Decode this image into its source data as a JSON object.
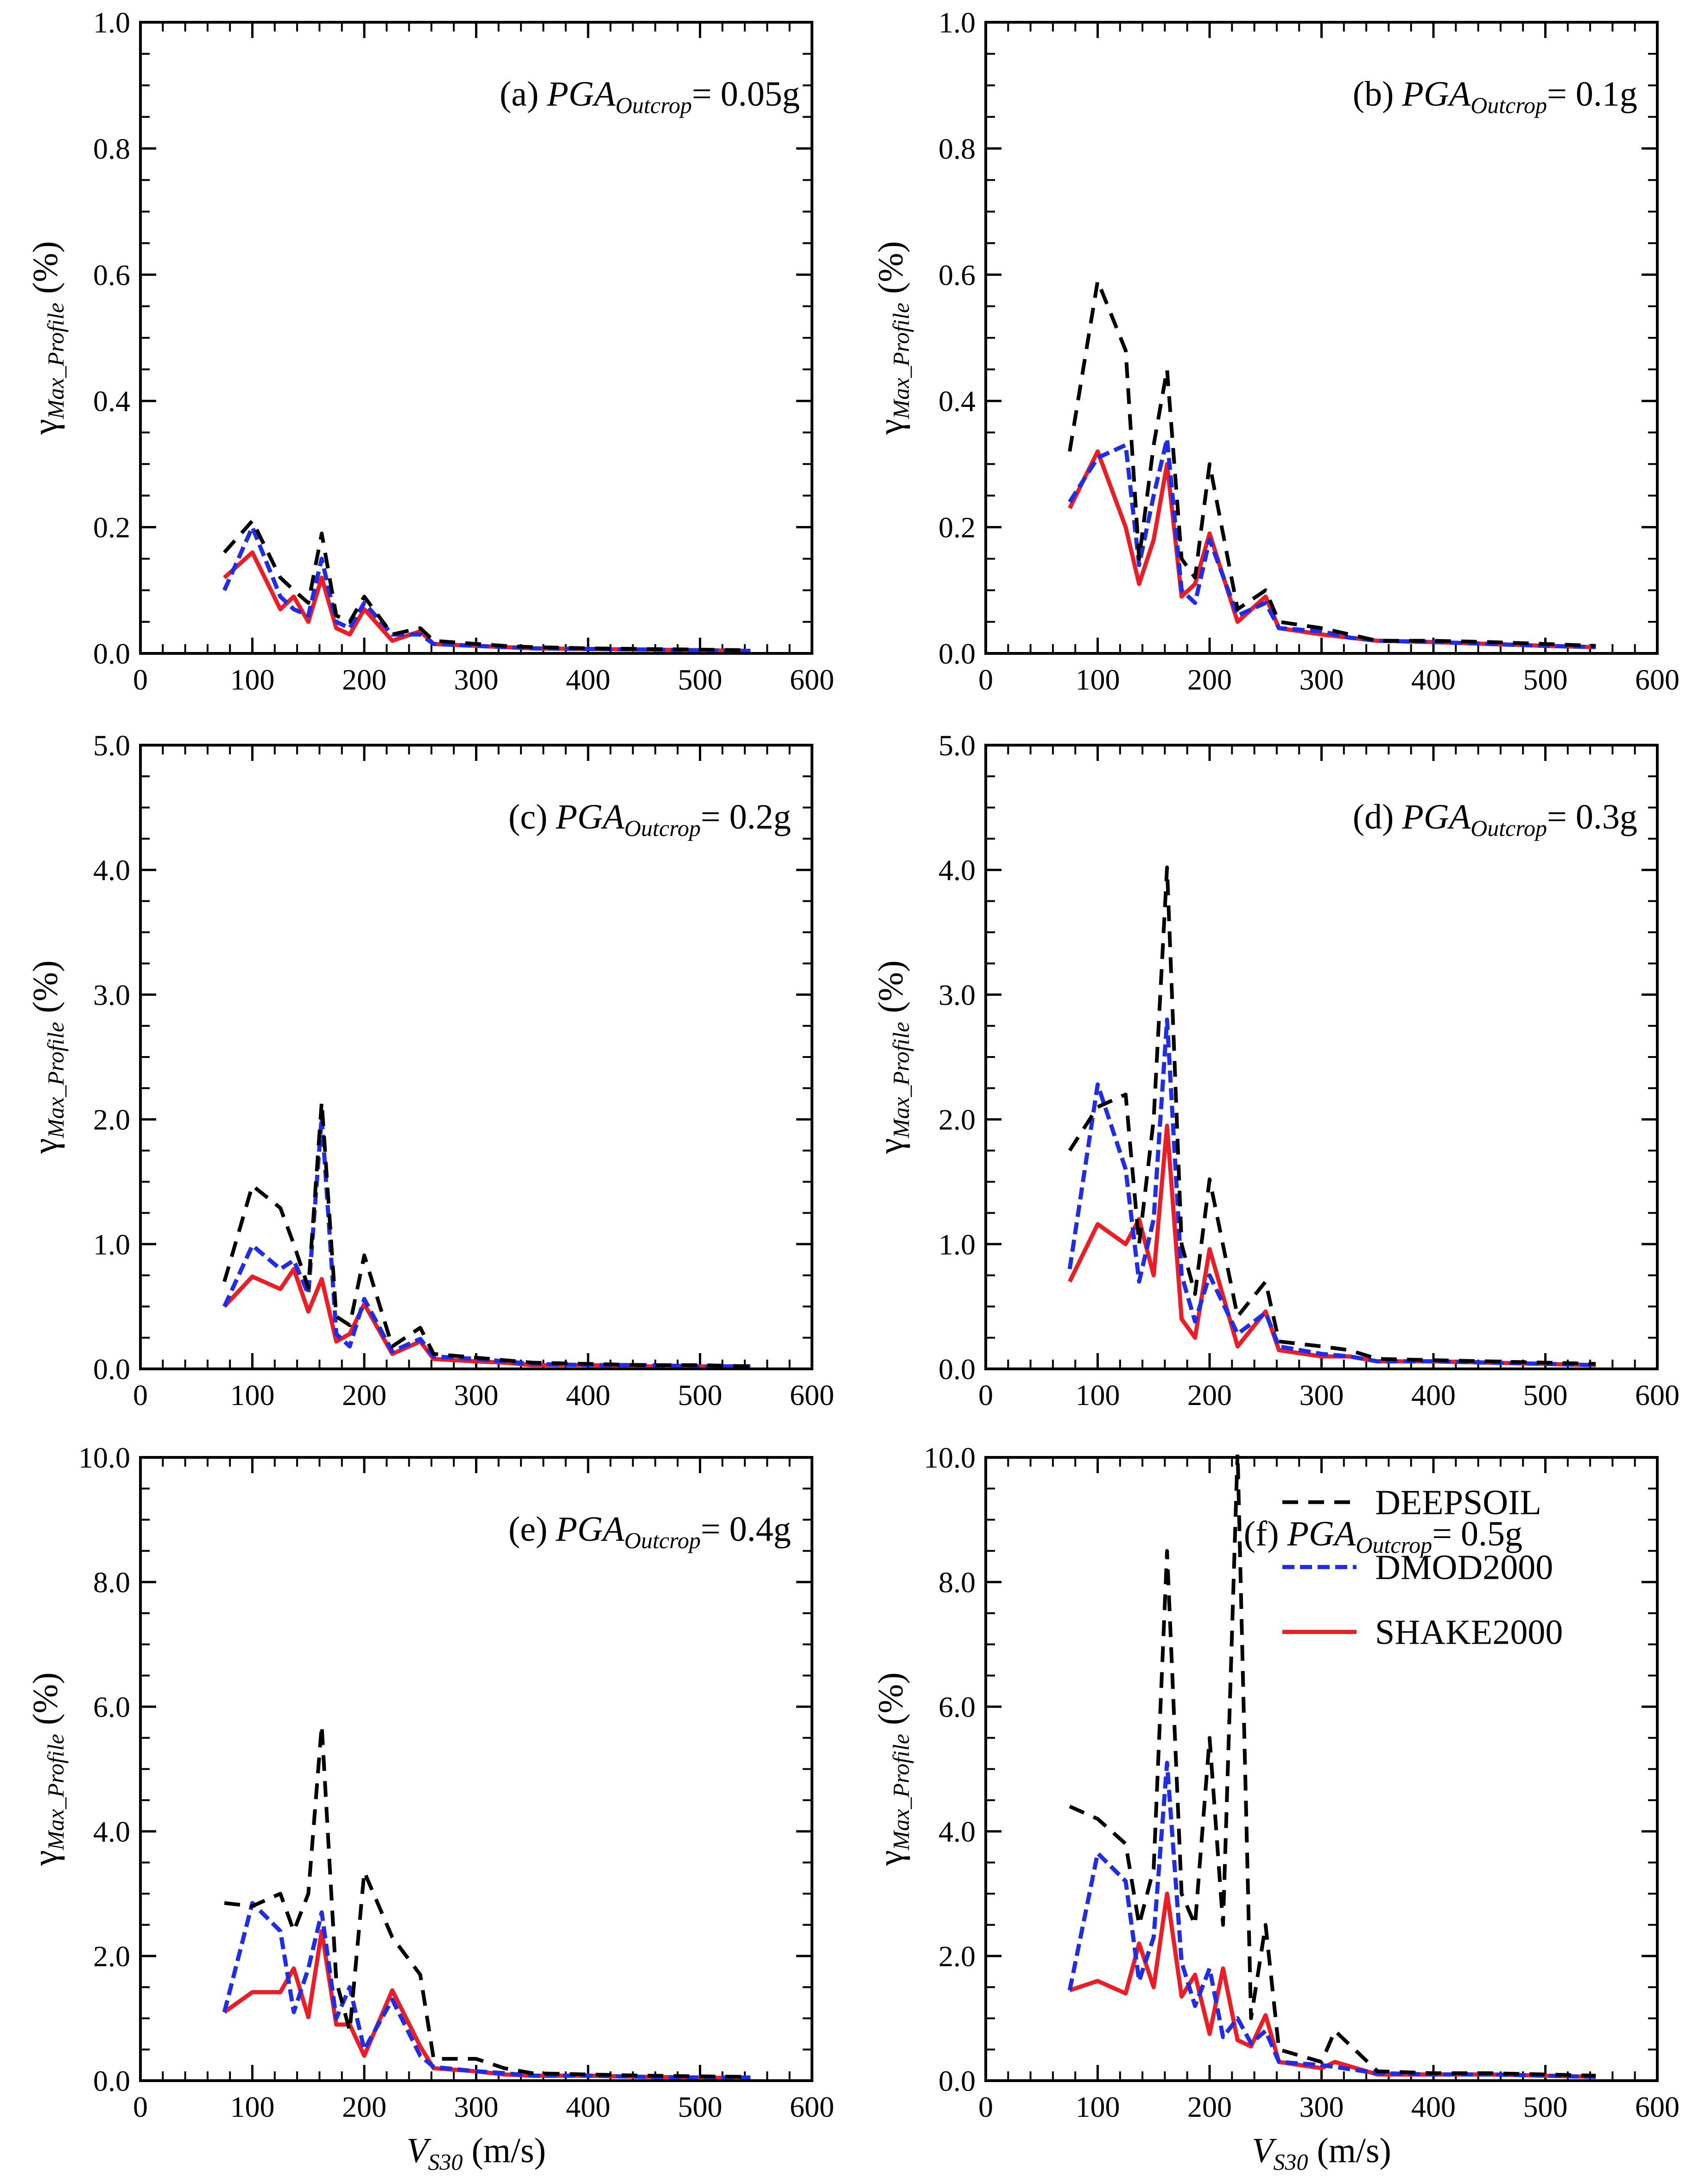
{
  "figure": {
    "x_label_main": "V",
    "x_label_sub": "S30",
    "x_label_unit": " (m/s)",
    "y_label_main": "γ",
    "y_label_sub": "Max_Profile",
    "y_label_unit": " (%)",
    "title_prefix_letters": [
      "(a)",
      "(b)",
      "(c)",
      "(d)",
      "(e)",
      "(f)"
    ],
    "title_var": "PGA",
    "title_sub": "Outcrop",
    "legend": [
      {
        "name": "SHAKE2000",
        "color": "#ee1c24"
      },
      {
        "name": "DMOD2000",
        "color": "#1f2ce8"
      },
      {
        "name": "DEEPSOIL",
        "color": "#000000"
      }
    ]
  },
  "chart_data": [
    {
      "type": "line",
      "title_letter": "(a)",
      "title_value": "= 0.05g",
      "xlim": [
        0,
        600
      ],
      "ylim": [
        0,
        1.0
      ],
      "xticks": [
        "0",
        "100",
        "200",
        "300",
        "400",
        "500",
        "600"
      ],
      "yticks": [
        "0.0",
        "0.2",
        "0.4",
        "0.6",
        "0.8",
        "1.0"
      ],
      "x": [
        75,
        100,
        125,
        137,
        150,
        162,
        175,
        187,
        200,
        225,
        250,
        262,
        300,
        325,
        350,
        400,
        450,
        500,
        545
      ],
      "series": [
        {
          "name": "SHAKE2000",
          "values": [
            0.12,
            0.16,
            0.07,
            0.09,
            0.05,
            0.12,
            0.04,
            0.03,
            0.07,
            0.02,
            0.035,
            0.015,
            0.012,
            0.01,
            0.008,
            0.007,
            0.006,
            0.005,
            0.004
          ]
        },
        {
          "name": "DMOD2000",
          "values": [
            0.1,
            0.2,
            0.09,
            0.07,
            0.06,
            0.15,
            0.05,
            0.04,
            0.08,
            0.03,
            0.03,
            0.015,
            0.012,
            0.01,
            0.008,
            0.007,
            0.006,
            0.005,
            0.004
          ]
        },
        {
          "name": "DEEPSOIL",
          "values": [
            0.16,
            0.21,
            0.12,
            0.1,
            0.08,
            0.19,
            0.06,
            0.05,
            0.09,
            0.03,
            0.04,
            0.02,
            0.015,
            0.012,
            0.01,
            0.008,
            0.007,
            0.006,
            0.005
          ]
        }
      ]
    },
    {
      "type": "line",
      "title_letter": "(b)",
      "title_value": "= 0.1g",
      "xlim": [
        0,
        600
      ],
      "ylim": [
        0,
        1.0
      ],
      "xticks": [
        "0",
        "100",
        "200",
        "300",
        "400",
        "500",
        "600"
      ],
      "yticks": [
        "0.0",
        "0.2",
        "0.4",
        "0.6",
        "0.8",
        "1.0"
      ],
      "x": [
        75,
        100,
        125,
        137,
        150,
        162,
        175,
        187,
        200,
        225,
        250,
        262,
        300,
        325,
        350,
        400,
        450,
        500,
        545
      ],
      "series": [
        {
          "name": "SHAKE2000",
          "values": [
            0.23,
            0.32,
            0.2,
            0.11,
            0.18,
            0.3,
            0.09,
            0.11,
            0.19,
            0.05,
            0.09,
            0.04,
            0.03,
            0.025,
            0.02,
            0.018,
            0.015,
            0.012,
            0.01
          ]
        },
        {
          "name": "DMOD2000",
          "values": [
            0.24,
            0.31,
            0.33,
            0.14,
            0.25,
            0.34,
            0.1,
            0.08,
            0.18,
            0.06,
            0.08,
            0.04,
            0.035,
            0.025,
            0.02,
            0.018,
            0.015,
            0.012,
            0.01
          ]
        },
        {
          "name": "DEEPSOIL",
          "values": [
            0.32,
            0.59,
            0.48,
            0.15,
            0.33,
            0.45,
            0.15,
            0.12,
            0.3,
            0.07,
            0.1,
            0.05,
            0.04,
            0.03,
            0.02,
            0.02,
            0.018,
            0.015,
            0.012
          ]
        }
      ]
    },
    {
      "type": "line",
      "title_letter": "(c)",
      "title_value": "= 0.2g",
      "xlim": [
        0,
        600
      ],
      "ylim": [
        0,
        5.0
      ],
      "xticks": [
        "0",
        "100",
        "200",
        "300",
        "400",
        "500",
        "600"
      ],
      "yticks": [
        "0.0",
        "1.0",
        "2.0",
        "3.0",
        "4.0",
        "5.0"
      ],
      "x": [
        75,
        100,
        125,
        137,
        150,
        162,
        175,
        187,
        200,
        225,
        250,
        262,
        300,
        325,
        350,
        400,
        450,
        500,
        545
      ],
      "series": [
        {
          "name": "SHAKE2000",
          "values": [
            0.5,
            0.74,
            0.64,
            0.8,
            0.46,
            0.72,
            0.22,
            0.28,
            0.52,
            0.12,
            0.22,
            0.08,
            0.06,
            0.05,
            0.03,
            0.03,
            0.02,
            0.02,
            0.02
          ]
        },
        {
          "name": "DMOD2000",
          "values": [
            0.5,
            0.99,
            0.8,
            0.87,
            0.6,
            2.02,
            0.28,
            0.18,
            0.56,
            0.14,
            0.24,
            0.1,
            0.08,
            0.06,
            0.04,
            0.03,
            0.03,
            0.02,
            0.02
          ]
        },
        {
          "name": "DEEPSOIL",
          "values": [
            0.7,
            1.47,
            1.29,
            1.0,
            0.65,
            2.14,
            0.42,
            0.35,
            0.91,
            0.18,
            0.33,
            0.12,
            0.09,
            0.07,
            0.05,
            0.04,
            0.03,
            0.03,
            0.02
          ]
        }
      ]
    },
    {
      "type": "line",
      "title_letter": "(d)",
      "title_value": "= 0.3g",
      "xlim": [
        0,
        600
      ],
      "ylim": [
        0,
        5.0
      ],
      "xticks": [
        "0",
        "100",
        "200",
        "300",
        "400",
        "500",
        "600"
      ],
      "yticks": [
        "0.0",
        "1.0",
        "2.0",
        "3.0",
        "4.0",
        "5.0"
      ],
      "x": [
        75,
        100,
        125,
        137,
        150,
        162,
        175,
        187,
        200,
        225,
        250,
        262,
        300,
        325,
        350,
        400,
        450,
        500,
        545
      ],
      "series": [
        {
          "name": "SHAKE2000",
          "values": [
            0.7,
            1.16,
            1.0,
            1.2,
            0.75,
            1.95,
            0.4,
            0.25,
            0.96,
            0.18,
            0.46,
            0.15,
            0.1,
            0.1,
            0.06,
            0.06,
            0.05,
            0.04,
            0.03
          ]
        },
        {
          "name": "DMOD2000",
          "values": [
            0.8,
            2.28,
            1.6,
            0.7,
            1.2,
            2.8,
            0.75,
            0.38,
            0.75,
            0.28,
            0.45,
            0.18,
            0.12,
            0.1,
            0.06,
            0.06,
            0.05,
            0.04,
            0.03
          ]
        },
        {
          "name": "DEEPSOIL",
          "values": [
            1.75,
            2.1,
            2.2,
            1.0,
            2.0,
            4.02,
            1.0,
            0.6,
            1.52,
            0.42,
            0.7,
            0.22,
            0.18,
            0.15,
            0.08,
            0.07,
            0.06,
            0.05,
            0.04
          ]
        }
      ]
    },
    {
      "type": "line",
      "title_letter": "(e)",
      "title_value": "= 0.4g",
      "xlim": [
        0,
        600
      ],
      "ylim": [
        0,
        10.0
      ],
      "xticks": [
        "0",
        "100",
        "200",
        "300",
        "400",
        "500",
        "600"
      ],
      "yticks": [
        "0.0",
        "2.0",
        "4.0",
        "6.0",
        "8.0",
        "10.0"
      ],
      "x": [
        75,
        100,
        125,
        137,
        150,
        162,
        175,
        187,
        200,
        225,
        250,
        262,
        300,
        325,
        350,
        400,
        450,
        500,
        545
      ],
      "series": [
        {
          "name": "SHAKE2000",
          "values": [
            1.1,
            1.42,
            1.42,
            1.8,
            1.02,
            2.4,
            0.9,
            0.9,
            0.4,
            1.45,
            0.55,
            0.2,
            0.15,
            0.1,
            0.08,
            0.08,
            0.06,
            0.05,
            0.04
          ]
        },
        {
          "name": "DMOD2000",
          "values": [
            1.1,
            2.85,
            2.4,
            1.1,
            1.8,
            2.7,
            1.0,
            1.5,
            0.5,
            1.3,
            0.4,
            0.22,
            0.15,
            0.12,
            0.08,
            0.08,
            0.06,
            0.05,
            0.05
          ]
        },
        {
          "name": "DEEPSOIL",
          "values": [
            2.85,
            2.8,
            3.0,
            2.4,
            3.0,
            5.7,
            1.6,
            0.8,
            3.35,
            2.3,
            1.7,
            0.35,
            0.35,
            0.2,
            0.12,
            0.1,
            0.08,
            0.07,
            0.06
          ]
        }
      ]
    },
    {
      "type": "line",
      "title_letter": "(f)",
      "title_value": "= 0.5g",
      "xlim": [
        0,
        600
      ],
      "ylim": [
        0,
        10.0
      ],
      "xticks": [
        "0",
        "100",
        "200",
        "300",
        "400",
        "500",
        "600"
      ],
      "yticks": [
        "0.0",
        "2.0",
        "4.0",
        "6.0",
        "8.0",
        "10.0"
      ],
      "x": [
        75,
        100,
        125,
        137,
        150,
        162,
        175,
        187,
        200,
        212,
        225,
        237,
        250,
        262,
        300,
        312,
        350,
        400,
        450,
        500,
        545
      ],
      "series": [
        {
          "name": "SHAKE2000",
          "values": [
            1.45,
            1.6,
            1.4,
            2.2,
            1.5,
            3.0,
            1.35,
            1.7,
            0.75,
            1.8,
            0.65,
            0.55,
            1.05,
            0.3,
            0.2,
            0.3,
            0.1,
            0.1,
            0.1,
            0.08,
            0.06
          ]
        },
        {
          "name": "DMOD2000",
          "values": [
            1.45,
            3.65,
            3.2,
            1.6,
            2.3,
            5.1,
            1.9,
            1.2,
            1.8,
            0.7,
            1.0,
            0.6,
            0.8,
            0.3,
            0.25,
            0.22,
            0.12,
            0.1,
            0.1,
            0.08,
            0.06
          ]
        },
        {
          "name": "DEEPSOIL",
          "values": [
            4.4,
            4.2,
            3.8,
            2.5,
            3.4,
            8.5,
            3.0,
            2.5,
            5.5,
            2.5,
            10.1,
            1.0,
            2.5,
            0.5,
            0.3,
            0.8,
            0.15,
            0.12,
            0.12,
            0.1,
            0.08
          ]
        }
      ]
    }
  ]
}
